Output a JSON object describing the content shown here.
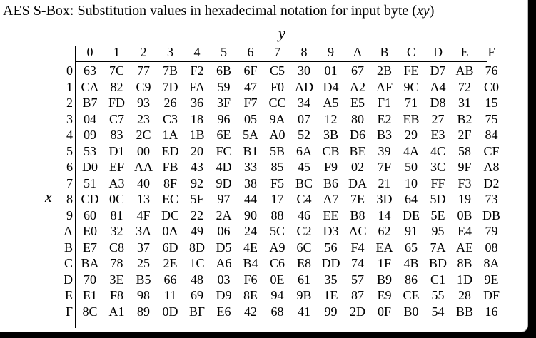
{
  "caption": {
    "text": "AES S-Box: Substitution values in hexadecimal notation for input byte (",
    "var": "xy",
    "close": ")"
  },
  "axes": {
    "column_label": "y",
    "row_label": "x"
  },
  "column_headers": [
    "0",
    "1",
    "2",
    "3",
    "4",
    "5",
    "6",
    "7",
    "8",
    "9",
    "A",
    "B",
    "C",
    "D",
    "E",
    "F"
  ],
  "rows": [
    {
      "label": "0",
      "cells": [
        "63",
        "7C",
        "77",
        "7B",
        "F2",
        "6B",
        "6F",
        "C5",
        "30",
        "01",
        "67",
        "2B",
        "FE",
        "D7",
        "AB",
        "76"
      ]
    },
    {
      "label": "1",
      "cells": [
        "CA",
        "82",
        "C9",
        "7D",
        "FA",
        "59",
        "47",
        "F0",
        "AD",
        "D4",
        "A2",
        "AF",
        "9C",
        "A4",
        "72",
        "C0"
      ]
    },
    {
      "label": "2",
      "cells": [
        "B7",
        "FD",
        "93",
        "26",
        "36",
        "3F",
        "F7",
        "CC",
        "34",
        "A5",
        "E5",
        "F1",
        "71",
        "D8",
        "31",
        "15"
      ]
    },
    {
      "label": "3",
      "cells": [
        "04",
        "C7",
        "23",
        "C3",
        "18",
        "96",
        "05",
        "9A",
        "07",
        "12",
        "80",
        "E2",
        "EB",
        "27",
        "B2",
        "75"
      ]
    },
    {
      "label": "4",
      "cells": [
        "09",
        "83",
        "2C",
        "1A",
        "1B",
        "6E",
        "5A",
        "A0",
        "52",
        "3B",
        "D6",
        "B3",
        "29",
        "E3",
        "2F",
        "84"
      ]
    },
    {
      "label": "5",
      "cells": [
        "53",
        "D1",
        "00",
        "ED",
        "20",
        "FC",
        "B1",
        "5B",
        "6A",
        "CB",
        "BE",
        "39",
        "4A",
        "4C",
        "58",
        "CF"
      ]
    },
    {
      "label": "6",
      "cells": [
        "D0",
        "EF",
        "AA",
        "FB",
        "43",
        "4D",
        "33",
        "85",
        "45",
        "F9",
        "02",
        "7F",
        "50",
        "3C",
        "9F",
        "A8"
      ]
    },
    {
      "label": "7",
      "cells": [
        "51",
        "A3",
        "40",
        "8F",
        "92",
        "9D",
        "38",
        "F5",
        "BC",
        "B6",
        "DA",
        "21",
        "10",
        "FF",
        "F3",
        "D2"
      ]
    },
    {
      "label": "8",
      "cells": [
        "CD",
        "0C",
        "13",
        "EC",
        "5F",
        "97",
        "44",
        "17",
        "C4",
        "A7",
        "7E",
        "3D",
        "64",
        "5D",
        "19",
        "73"
      ]
    },
    {
      "label": "9",
      "cells": [
        "60",
        "81",
        "4F",
        "DC",
        "22",
        "2A",
        "90",
        "88",
        "46",
        "EE",
        "B8",
        "14",
        "DE",
        "5E",
        "0B",
        "DB"
      ]
    },
    {
      "label": "A",
      "cells": [
        "E0",
        "32",
        "3A",
        "0A",
        "49",
        "06",
        "24",
        "5C",
        "C2",
        "D3",
        "AC",
        "62",
        "91",
        "95",
        "E4",
        "79"
      ]
    },
    {
      "label": "B",
      "cells": [
        "E7",
        "C8",
        "37",
        "6D",
        "8D",
        "D5",
        "4E",
        "A9",
        "6C",
        "56",
        "F4",
        "EA",
        "65",
        "7A",
        "AE",
        "08"
      ]
    },
    {
      "label": "C",
      "cells": [
        "BA",
        "78",
        "25",
        "2E",
        "1C",
        "A6",
        "B4",
        "C6",
        "E8",
        "DD",
        "74",
        "1F",
        "4B",
        "BD",
        "8B",
        "8A"
      ]
    },
    {
      "label": "D",
      "cells": [
        "70",
        "3E",
        "B5",
        "66",
        "48",
        "03",
        "F6",
        "0E",
        "61",
        "35",
        "57",
        "B9",
        "86",
        "C1",
        "1D",
        "9E"
      ]
    },
    {
      "label": "E",
      "cells": [
        "E1",
        "F8",
        "98",
        "11",
        "69",
        "D9",
        "8E",
        "94",
        "9B",
        "1E",
        "87",
        "E9",
        "CE",
        "55",
        "28",
        "DF"
      ]
    },
    {
      "label": "F",
      "cells": [
        "8C",
        "A1",
        "89",
        "0D",
        "BF",
        "E6",
        "42",
        "68",
        "41",
        "99",
        "2D",
        "0F",
        "B0",
        "54",
        "BB",
        "16"
      ]
    }
  ]
}
